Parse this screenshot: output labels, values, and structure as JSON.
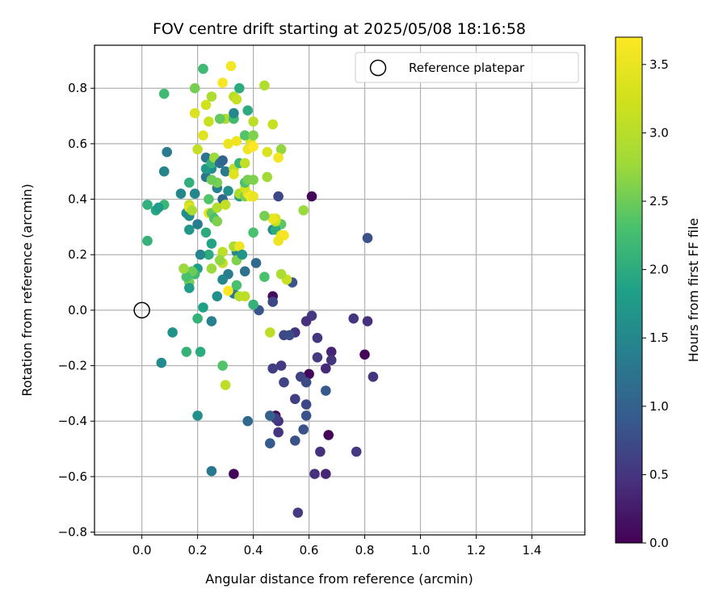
{
  "chart_data": {
    "type": "scatter",
    "title": "FOV centre drift starting at 2025/05/08 18:16:58",
    "xlabel": "Angular distance from reference (arcmin)",
    "ylabel": "Rotation from reference (arcmin)",
    "xlim": [
      -0.17,
      1.59
    ],
    "ylim": [
      -0.81,
      0.955
    ],
    "xticks": [
      0.0,
      0.2,
      0.4,
      0.6,
      0.8,
      1.0,
      1.2,
      1.4
    ],
    "xtick_labels": [
      "0.0",
      "0.2",
      "0.4",
      "0.6",
      "0.8",
      "1.0",
      "1.2",
      "1.4"
    ],
    "yticks": [
      -0.8,
      -0.6,
      -0.4,
      -0.2,
      0.0,
      0.2,
      0.4,
      0.6,
      0.8
    ],
    "ytick_labels": [
      "−0.8",
      "−0.6",
      "−0.4",
      "−0.2",
      "0.0",
      "0.2",
      "0.4",
      "0.6",
      "0.8"
    ],
    "grid": true,
    "legend": {
      "position": "top-right",
      "entries": [
        {
          "label": "Reference platepar",
          "marker": "open-circle"
        }
      ]
    },
    "reference_point": {
      "x": 0.0,
      "y": 0.0
    },
    "colorbar": {
      "label": "Hours from first FF file",
      "colormap": "viridis",
      "range": [
        0.0,
        3.7
      ],
      "ticks": [
        0.0,
        0.5,
        1.0,
        1.5,
        2.0,
        2.5,
        3.0,
        3.5
      ],
      "tick_labels": [
        "0.0",
        "0.5",
        "1.0",
        "1.5",
        "2.0",
        "2.5",
        "3.0",
        "3.5"
      ]
    },
    "points": [
      [
        0.61,
        0.41,
        0.05
      ],
      [
        0.8,
        -0.16,
        0.05
      ],
      [
        0.67,
        -0.45,
        0.05
      ],
      [
        0.6,
        -0.23,
        0.05
      ],
      [
        0.33,
        -0.59,
        0.05
      ],
      [
        0.48,
        -0.38,
        0.05
      ],
      [
        0.47,
        0.05,
        0.1
      ],
      [
        0.56,
        -0.73,
        0.55
      ],
      [
        0.62,
        -0.59,
        0.45
      ],
      [
        0.66,
        -0.59,
        0.35
      ],
      [
        0.64,
        -0.51,
        0.45
      ],
      [
        0.77,
        -0.51,
        0.55
      ],
      [
        0.83,
        -0.24,
        0.5
      ],
      [
        0.81,
        -0.04,
        0.45
      ],
      [
        0.76,
        -0.03,
        0.5
      ],
      [
        0.68,
        -0.15,
        0.35
      ],
      [
        0.68,
        -0.18,
        0.5
      ],
      [
        0.66,
        -0.21,
        0.4
      ],
      [
        0.63,
        -0.17,
        0.55
      ],
      [
        0.63,
        -0.1,
        0.5
      ],
      [
        0.61,
        -0.02,
        0.55
      ],
      [
        0.59,
        -0.04,
        0.45
      ],
      [
        0.55,
        -0.08,
        0.5
      ],
      [
        0.49,
        -0.4,
        0.45
      ],
      [
        0.49,
        -0.44,
        0.5
      ],
      [
        0.48,
        -0.39,
        0.6
      ],
      [
        0.47,
        -0.21,
        0.6
      ],
      [
        0.5,
        -0.2,
        0.55
      ],
      [
        0.51,
        -0.26,
        0.65
      ],
      [
        0.55,
        -0.32,
        0.6
      ],
      [
        0.57,
        -0.24,
        0.65
      ],
      [
        0.59,
        -0.26,
        0.75
      ],
      [
        0.59,
        -0.34,
        0.7
      ],
      [
        0.59,
        -0.38,
        0.8
      ],
      [
        0.58,
        -0.43,
        0.8
      ],
      [
        0.55,
        -0.47,
        0.8
      ],
      [
        0.46,
        -0.48,
        0.9
      ],
      [
        0.46,
        -0.38,
        1.0
      ],
      [
        0.66,
        -0.29,
        0.9
      ],
      [
        0.81,
        0.26,
        0.8
      ],
      [
        0.49,
        0.41,
        0.7
      ],
      [
        0.51,
        -0.09,
        0.7
      ],
      [
        0.53,
        -0.09,
        0.75
      ],
      [
        0.54,
        0.1,
        0.85
      ],
      [
        0.47,
        0.03,
        0.7
      ],
      [
        0.42,
        0.0,
        0.85
      ],
      [
        0.38,
        -0.4,
        1.1
      ],
      [
        0.25,
        -0.58,
        1.3
      ],
      [
        0.2,
        -0.38,
        1.6
      ],
      [
        0.25,
        -0.04,
        1.4
      ],
      [
        0.27,
        0.05,
        1.6
      ],
      [
        0.22,
        0.01,
        1.85
      ],
      [
        0.2,
        -0.03,
        2.1
      ],
      [
        0.21,
        -0.15,
        2.0
      ],
      [
        0.16,
        -0.15,
        2.1
      ],
      [
        0.11,
        -0.08,
        1.65
      ],
      [
        0.07,
        -0.19,
        1.55
      ],
      [
        0.29,
        -0.2,
        2.35
      ],
      [
        0.3,
        -0.27,
        3.05
      ],
      [
        0.46,
        -0.08,
        3.05
      ],
      [
        0.44,
        0.12,
        2.3
      ],
      [
        0.4,
        0.02,
        2.1
      ],
      [
        0.4,
        0.28,
        2.3
      ],
      [
        0.41,
        0.17,
        1.1
      ],
      [
        0.37,
        0.14,
        1.2
      ],
      [
        0.34,
        0.21,
        1.5
      ],
      [
        0.31,
        0.13,
        1.35
      ],
      [
        0.29,
        0.11,
        1.5
      ],
      [
        0.33,
        0.06,
        1.3
      ],
      [
        0.31,
        0.07,
        3.7
      ],
      [
        0.35,
        0.05,
        3.0
      ],
      [
        0.37,
        0.05,
        3.05
      ],
      [
        0.34,
        0.09,
        2.3
      ],
      [
        0.34,
        0.18,
        2.6
      ],
      [
        0.33,
        0.23,
        2.9
      ],
      [
        0.35,
        0.23,
        3.55
      ],
      [
        0.29,
        0.21,
        3.05
      ],
      [
        0.29,
        0.17,
        3.1
      ],
      [
        0.28,
        0.18,
        2.7
      ],
      [
        0.25,
        0.15,
        2.75
      ],
      [
        0.24,
        0.2,
        2.0
      ],
      [
        0.25,
        0.24,
        1.9
      ],
      [
        0.23,
        0.28,
        2.0
      ],
      [
        0.21,
        0.2,
        1.45
      ],
      [
        0.2,
        0.15,
        1.8
      ],
      [
        0.19,
        0.13,
        2.2
      ],
      [
        0.18,
        0.14,
        2.5
      ],
      [
        0.17,
        0.1,
        2.55
      ],
      [
        0.16,
        0.12,
        2.3
      ],
      [
        0.15,
        0.15,
        2.75
      ],
      [
        0.17,
        0.08,
        1.8
      ],
      [
        0.02,
        0.25,
        2.1
      ],
      [
        0.02,
        0.38,
        2.05
      ],
      [
        0.05,
        0.36,
        1.95
      ],
      [
        0.08,
        0.38,
        2.15
      ],
      [
        0.06,
        0.37,
        1.8
      ],
      [
        0.14,
        0.42,
        1.5
      ],
      [
        0.16,
        0.35,
        1.6
      ],
      [
        0.17,
        0.34,
        1.55
      ],
      [
        0.17,
        0.38,
        3.1
      ],
      [
        0.17,
        0.37,
        3.4
      ],
      [
        0.18,
        0.36,
        2.9
      ],
      [
        0.17,
        0.29,
        1.7
      ],
      [
        0.2,
        0.31,
        1.35
      ],
      [
        0.19,
        0.42,
        1.45
      ],
      [
        0.17,
        0.46,
        2.05
      ],
      [
        0.23,
        0.48,
        1.3
      ],
      [
        0.24,
        0.4,
        2.35
      ],
      [
        0.24,
        0.35,
        3.5
      ],
      [
        0.25,
        0.35,
        2.45
      ],
      [
        0.26,
        0.33,
        2.3
      ],
      [
        0.27,
        0.32,
        2.6
      ],
      [
        0.27,
        0.37,
        2.95
      ],
      [
        0.27,
        0.44,
        1.4
      ],
      [
        0.29,
        0.4,
        1.1
      ],
      [
        0.3,
        0.38,
        3.1
      ],
      [
        0.31,
        0.43,
        1.6
      ],
      [
        0.3,
        0.5,
        1.35
      ],
      [
        0.27,
        0.46,
        2.55
      ],
      [
        0.25,
        0.47,
        2.5
      ],
      [
        0.25,
        0.51,
        1.6
      ],
      [
        0.23,
        0.51,
        1.75
      ],
      [
        0.23,
        0.55,
        1.25
      ],
      [
        0.25,
        0.53,
        2.1
      ],
      [
        0.26,
        0.55,
        2.75
      ],
      [
        0.28,
        0.53,
        1.2
      ],
      [
        0.29,
        0.54,
        1.05
      ],
      [
        0.31,
        0.6,
        3.5
      ],
      [
        0.34,
        0.61,
        3.55
      ],
      [
        0.33,
        0.51,
        3.05
      ],
      [
        0.35,
        0.53,
        2.1
      ],
      [
        0.37,
        0.53,
        3.1
      ],
      [
        0.35,
        0.41,
        1.8
      ],
      [
        0.35,
        0.42,
        2.9
      ],
      [
        0.37,
        0.41,
        2.6
      ],
      [
        0.38,
        0.42,
        3.55
      ],
      [
        0.39,
        0.41,
        3.65
      ],
      [
        0.4,
        0.41,
        3.5
      ],
      [
        0.37,
        0.44,
        3.3
      ],
      [
        0.37,
        0.46,
        2.3
      ],
      [
        0.38,
        0.47,
        2.55
      ],
      [
        0.4,
        0.47,
        2.6
      ],
      [
        0.38,
        0.58,
        3.55
      ],
      [
        0.39,
        0.61,
        3.35
      ],
      [
        0.4,
        0.59,
        3.7
      ],
      [
        0.37,
        0.63,
        2.35
      ],
      [
        0.45,
        0.57,
        3.35
      ],
      [
        0.47,
        0.67,
        3.15
      ],
      [
        0.44,
        0.81,
        2.95
      ],
      [
        0.5,
        0.58,
        2.7
      ],
      [
        0.49,
        0.55,
        3.6
      ],
      [
        0.5,
        0.31,
        2.4
      ],
      [
        0.47,
        0.29,
        1.55
      ],
      [
        0.48,
        0.29,
        2.0
      ],
      [
        0.48,
        0.32,
        3.1
      ],
      [
        0.48,
        0.33,
        3.3
      ],
      [
        0.47,
        0.33,
        3.5
      ],
      [
        0.5,
        0.27,
        3.45
      ],
      [
        0.51,
        0.27,
        3.65
      ],
      [
        0.49,
        0.25,
        3.55
      ],
      [
        0.52,
        0.11,
        3.15
      ],
      [
        0.5,
        0.13,
        2.9
      ],
      [
        0.45,
        0.48,
        2.8
      ],
      [
        0.58,
        0.36,
        2.75
      ],
      [
        0.3,
        0.69,
        2.9
      ],
      [
        0.28,
        0.69,
        2.45
      ],
      [
        0.33,
        0.69,
        2.2
      ],
      [
        0.33,
        0.71,
        1.5
      ],
      [
        0.35,
        0.8,
        2.0
      ],
      [
        0.33,
        0.77,
        3.0
      ],
      [
        0.34,
        0.76,
        3.15
      ],
      [
        0.32,
        0.88,
        3.6
      ],
      [
        0.29,
        0.82,
        3.65
      ],
      [
        0.22,
        0.87,
        2.2
      ],
      [
        0.19,
        0.8,
        2.55
      ],
      [
        0.19,
        0.71,
        3.35
      ],
      [
        0.22,
        0.63,
        3.4
      ],
      [
        0.24,
        0.68,
        3.15
      ],
      [
        0.23,
        0.74,
        3.25
      ],
      [
        0.25,
        0.77,
        2.9
      ],
      [
        0.38,
        0.72,
        2.0
      ],
      [
        0.4,
        0.68,
        3.05
      ],
      [
        0.4,
        0.63,
        2.6
      ],
      [
        0.2,
        0.58,
        3.1
      ],
      [
        0.09,
        0.57,
        1.35
      ],
      [
        0.08,
        0.5,
        1.45
      ],
      [
        0.08,
        0.78,
        2.2
      ],
      [
        0.36,
        0.2,
        1.7
      ],
      [
        0.33,
        0.49,
        3.4
      ],
      [
        0.44,
        0.34,
        2.55
      ]
    ]
  }
}
